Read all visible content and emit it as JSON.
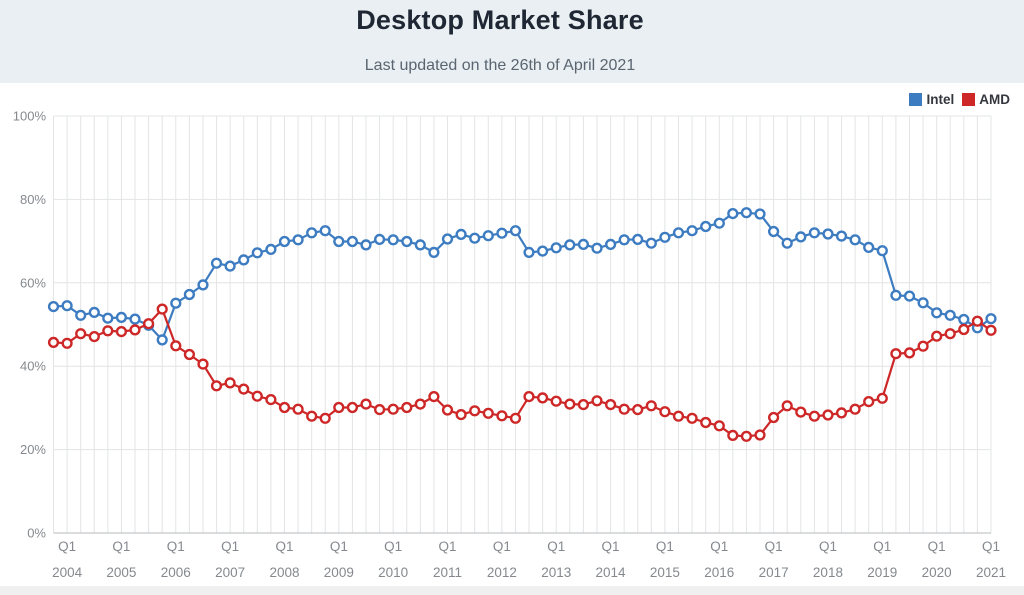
{
  "header": {
    "title": "Desktop Market Share",
    "subtitle": "Last updated on the 26th of April 2021"
  },
  "legend": [
    {
      "label": "Intel",
      "color": "#3d7cc1"
    },
    {
      "label": "AMD",
      "color": "#cd2727"
    }
  ],
  "colors": {
    "intel": "#3d7cc1",
    "amd": "#cd2727",
    "grid": "#e3e4e5",
    "axis": "#b6b9bc",
    "tick_text": "#85898e"
  },
  "chart_data": {
    "type": "line",
    "title": "Desktop Market Share",
    "subtitle": "Last updated on the 26th of April 2021",
    "xlabel": "",
    "ylabel": "",
    "ylim": [
      0,
      100
    ],
    "grid": true,
    "legend_position": "top-right",
    "marker": "open-circle",
    "y_ticks": [
      0,
      20,
      40,
      60,
      80,
      100
    ],
    "y_tick_suffix": "%",
    "x": [
      "Q4 2003",
      "Q1 2004",
      "Q2 2004",
      "Q3 2004",
      "Q4 2004",
      "Q1 2005",
      "Q2 2005",
      "Q3 2005",
      "Q4 2005",
      "Q1 2006",
      "Q2 2006",
      "Q3 2006",
      "Q4 2006",
      "Q1 2007",
      "Q2 2007",
      "Q3 2007",
      "Q4 2007",
      "Q1 2008",
      "Q2 2008",
      "Q3 2008",
      "Q4 2008",
      "Q1 2009",
      "Q2 2009",
      "Q3 2009",
      "Q4 2009",
      "Q1 2010",
      "Q2 2010",
      "Q3 2010",
      "Q4 2010",
      "Q1 2011",
      "Q2 2011",
      "Q3 2011",
      "Q4 2011",
      "Q1 2012",
      "Q2 2012",
      "Q3 2012",
      "Q4 2012",
      "Q1 2013",
      "Q2 2013",
      "Q3 2013",
      "Q4 2013",
      "Q1 2014",
      "Q2 2014",
      "Q3 2014",
      "Q4 2014",
      "Q1 2015",
      "Q2 2015",
      "Q3 2015",
      "Q4 2015",
      "Q1 2016",
      "Q2 2016",
      "Q3 2016",
      "Q4 2016",
      "Q1 2017",
      "Q2 2017",
      "Q3 2017",
      "Q4 2017",
      "Q1 2018",
      "Q2 2018",
      "Q3 2018",
      "Q4 2018",
      "Q1 2019",
      "Q2 2019",
      "Q3 2019",
      "Q4 2019",
      "Q1 2020",
      "Q2 2020",
      "Q3 2020",
      "Q4 2020",
      "Q1 2021"
    ],
    "x_ticks": [
      {
        "i": 1,
        "q": "Q1",
        "year": "2004"
      },
      {
        "i": 5,
        "q": "Q1",
        "year": "2005"
      },
      {
        "i": 9,
        "q": "Q1",
        "year": "2006"
      },
      {
        "i": 13,
        "q": "Q1",
        "year": "2007"
      },
      {
        "i": 17,
        "q": "Q1",
        "year": "2008"
      },
      {
        "i": 21,
        "q": "Q1",
        "year": "2009"
      },
      {
        "i": 25,
        "q": "Q1",
        "year": "2010"
      },
      {
        "i": 29,
        "q": "Q1",
        "year": "2011"
      },
      {
        "i": 33,
        "q": "Q1",
        "year": "2012"
      },
      {
        "i": 37,
        "q": "Q1",
        "year": "2013"
      },
      {
        "i": 41,
        "q": "Q1",
        "year": "2014"
      },
      {
        "i": 45,
        "q": "Q1",
        "year": "2015"
      },
      {
        "i": 49,
        "q": "Q1",
        "year": "2016"
      },
      {
        "i": 53,
        "q": "Q1",
        "year": "2017"
      },
      {
        "i": 57,
        "q": "Q1",
        "year": "2018"
      },
      {
        "i": 61,
        "q": "Q1",
        "year": "2019"
      },
      {
        "i": 65,
        "q": "Q1",
        "year": "2020"
      },
      {
        "i": 69,
        "q": "Q1",
        "year": "2021"
      }
    ],
    "series": [
      {
        "name": "Intel",
        "color": "#3d7cc1",
        "values": [
          54.3,
          54.5,
          52.2,
          52.9,
          51.5,
          51.7,
          51.3,
          49.8,
          46.3,
          55.1,
          57.2,
          59.5,
          64.7,
          64.0,
          65.5,
          67.2,
          68.0,
          69.9,
          70.3,
          72.0,
          72.5,
          69.9,
          69.9,
          69.1,
          70.4,
          70.3,
          69.9,
          69.1,
          67.3,
          70.5,
          71.6,
          70.7,
          71.3,
          71.9,
          72.5,
          67.3,
          67.6,
          68.4,
          69.1,
          69.2,
          68.3,
          69.2,
          70.3,
          70.4,
          69.5,
          70.9,
          72.0,
          72.5,
          73.5,
          74.3,
          76.6,
          76.8,
          76.5,
          72.3,
          69.5,
          71.0,
          72.0,
          71.7,
          71.2,
          70.3,
          68.5,
          67.7,
          57.0,
          56.8,
          55.2,
          52.8,
          52.2,
          51.2,
          49.2,
          51.4
        ]
      },
      {
        "name": "AMD",
        "color": "#cd2727",
        "values": [
          45.7,
          45.5,
          47.8,
          47.1,
          48.5,
          48.3,
          48.7,
          50.2,
          53.7,
          44.9,
          42.8,
          40.5,
          35.3,
          36.0,
          34.5,
          32.8,
          32.0,
          30.1,
          29.7,
          28.0,
          27.5,
          30.1,
          30.1,
          30.9,
          29.6,
          29.7,
          30.1,
          30.9,
          32.7,
          29.5,
          28.4,
          29.3,
          28.7,
          28.1,
          27.5,
          32.7,
          32.4,
          31.6,
          30.9,
          30.8,
          31.7,
          30.8,
          29.7,
          29.6,
          30.5,
          29.1,
          28.0,
          27.5,
          26.5,
          25.7,
          23.4,
          23.2,
          23.5,
          27.7,
          30.5,
          29.0,
          28.0,
          28.3,
          28.8,
          29.7,
          31.5,
          32.3,
          43.0,
          43.2,
          44.8,
          47.2,
          47.8,
          48.8,
          50.8,
          48.6
        ]
      }
    ]
  }
}
